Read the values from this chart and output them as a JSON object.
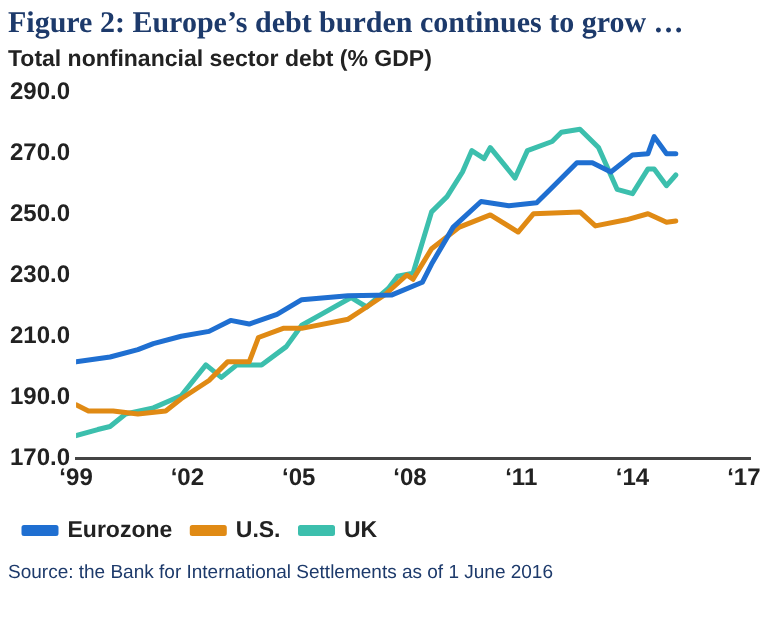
{
  "chart_data": {
    "type": "line",
    "title": "Figure 2: Europe’s debt burden continues to grow …",
    "subtitle": "Total nonfinancial sector debt (% GDP)",
    "xlim": [
      "1999",
      "2017-03"
    ],
    "xticks": [
      {
        "value": "1999",
        "label": "‘99"
      },
      {
        "value": "2002",
        "label": "‘02"
      },
      {
        "value": "2005",
        "label": "‘05"
      },
      {
        "value": "2008",
        "label": "‘08"
      },
      {
        "value": "2011",
        "label": "‘11"
      },
      {
        "value": "2014",
        "label": "‘14"
      },
      {
        "value": "2017",
        "label": "‘17"
      }
    ],
    "ylim": [
      170,
      290
    ],
    "yticks": [
      {
        "value": 170,
        "label": "170.0"
      },
      {
        "value": 190,
        "label": "190.0"
      },
      {
        "value": 210,
        "label": "210.0"
      },
      {
        "value": 230,
        "label": "230.0"
      },
      {
        "value": 250,
        "label": "250.0"
      },
      {
        "value": 270,
        "label": "270.0"
      },
      {
        "value": 290,
        "label": "290.0"
      }
    ],
    "legend": "bottom",
    "marker": "none",
    "line_style": "solid",
    "series": [
      {
        "name": "Eurozone",
        "color": "#1f6fd1",
        "x": [
          "1999-01",
          "1999-12",
          "2000-09",
          "2001-02",
          "2001-11",
          "2002-08",
          "2003-03",
          "2003-09",
          "2004-06",
          "2005-02",
          "2006-05",
          "2007-07",
          "2008-05",
          "2008-08",
          "2009-03",
          "2009-12",
          "2010-09",
          "2011-06",
          "2011-11",
          "2012-07",
          "2012-12",
          "2013-06",
          "2014-01",
          "2014-06",
          "2014-08",
          "2014-12",
          "2015-03"
        ],
        "values": [
          201.6,
          203.2,
          205.6,
          207.6,
          210,
          211.6,
          215.2,
          214,
          217.2,
          222,
          223.3,
          223.5,
          227.7,
          233.7,
          245.8,
          254.2,
          252.8,
          253.8,
          258.8,
          266.9,
          266.9,
          263.9,
          269.5,
          269.9,
          275.5,
          269.9,
          269.9
        ]
      },
      {
        "name": "U.S.",
        "color": "#e08a14",
        "x": [
          "1999-01",
          "1999-05",
          "2000-01",
          "2000-09",
          "2001-06",
          "2001-11",
          "2002-08",
          "2003-02",
          "2003-09",
          "2003-12",
          "2004-08",
          "2005-02",
          "2006-05",
          "2006-11",
          "2007-05",
          "2007-12",
          "2008-02",
          "2008-08",
          "2009-05",
          "2010-03",
          "2010-12",
          "2011-05",
          "2012-08",
          "2013-01",
          "2013-11",
          "2014-06",
          "2014-12",
          "2015-03"
        ],
        "values": [
          187.5,
          185.5,
          185.5,
          184.5,
          185.5,
          189.5,
          195.5,
          201.6,
          201.6,
          209.6,
          212.6,
          212.6,
          215.6,
          219.6,
          223.7,
          230.1,
          228.7,
          238.7,
          245.8,
          249.8,
          244.2,
          250.2,
          250.8,
          246.2,
          248.2,
          250.2,
          247.4,
          247.8
        ]
      },
      {
        "name": "UK",
        "color": "#3cbfad",
        "x": [
          "1999-01",
          "1999-08",
          "1999-12",
          "2000-05",
          "2001-02",
          "2001-11",
          "2002-07",
          "2002-12",
          "2003-05",
          "2004-01",
          "2004-09",
          "2005-02",
          "2005-09",
          "2006-06",
          "2006-11",
          "2007-06",
          "2007-09",
          "2008-02",
          "2008-08",
          "2009-01",
          "2009-06",
          "2009-09",
          "2010-01",
          "2010-03",
          "2010-11",
          "2011-03",
          "2011-11",
          "2012-02",
          "2012-08",
          "2013-02",
          "2013-08",
          "2014-01",
          "2014-06",
          "2014-08",
          "2014-12",
          "2015-03"
        ],
        "values": [
          177.4,
          179.4,
          180.4,
          184.5,
          186.5,
          190.5,
          200.6,
          196.5,
          200.6,
          200.6,
          206.6,
          213.6,
          217.6,
          222.7,
          219.6,
          225.7,
          229.7,
          230.7,
          250.8,
          255.8,
          263.9,
          270.9,
          268.3,
          271.9,
          261.9,
          270.9,
          273.9,
          276.9,
          277.9,
          271.9,
          258.2,
          256.8,
          264.9,
          264.9,
          259.4,
          262.9
        ]
      }
    ],
    "annotations": [
      "Source: the Bank for International Settlements as of 1 June 2016"
    ]
  }
}
